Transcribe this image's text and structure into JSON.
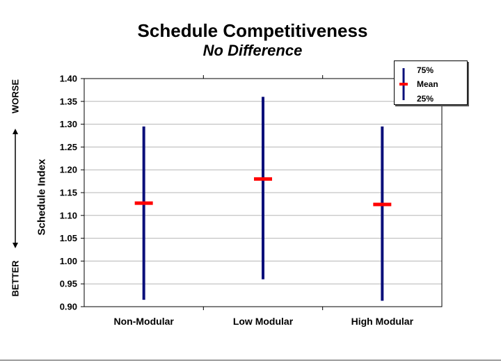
{
  "chart_data": {
    "type": "range",
    "title": "Schedule Competitiveness",
    "subtitle": "No Difference",
    "ylabel": "Schedule Index",
    "side_labels": {
      "top": "WORSE",
      "bottom": "BETTER"
    },
    "ylim": [
      0.9,
      1.4
    ],
    "yticks": [
      "0.90",
      "0.95",
      "1.00",
      "1.05",
      "1.10",
      "1.15",
      "1.20",
      "1.25",
      "1.30",
      "1.35",
      "1.40"
    ],
    "grid": true,
    "legend_position": "top-right",
    "categories": [
      "Non-Modular",
      "Low Modular",
      "High Modular"
    ],
    "series": [
      {
        "name": "75%",
        "values": [
          1.295,
          1.36,
          1.295
        ]
      },
      {
        "name": "Mean",
        "values": [
          1.127,
          1.18,
          1.124
        ]
      },
      {
        "name": "25%",
        "values": [
          0.915,
          0.96,
          0.913
        ]
      }
    ],
    "colors": {
      "range": "#0a0f7a",
      "mean": "#ff0000",
      "grid": "#b5b5b5"
    }
  },
  "legend": {
    "high": "75%",
    "mean": "Mean",
    "low": "25%"
  }
}
